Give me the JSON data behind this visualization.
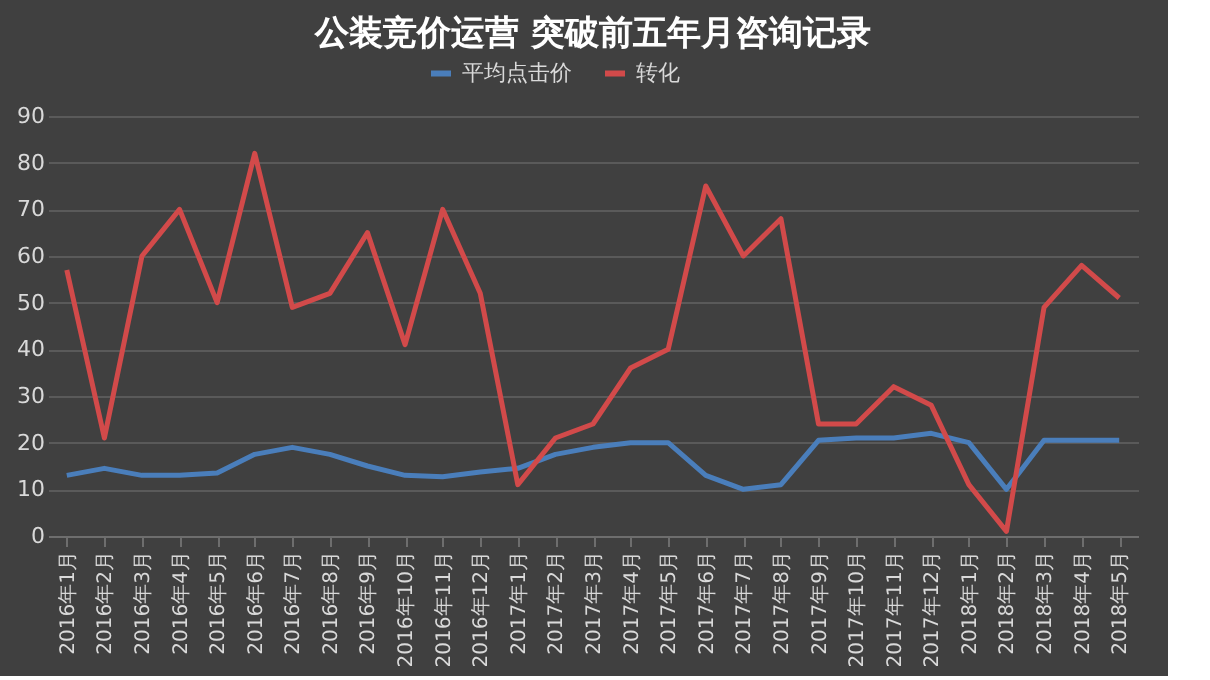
{
  "chart_data": {
    "type": "line",
    "title": "公装竞价运营 突破前五年月咨询记录",
    "categories": [
      "2016年1月",
      "2016年2月",
      "2016年3月",
      "2016年4月",
      "2016年5月",
      "2016年6月",
      "2016年7月",
      "2016年8月",
      "2016年9月",
      "2016年10月",
      "2016年11月",
      "2016年12月",
      "2017年1月",
      "2017年2月",
      "2017年3月",
      "2017年4月",
      "2017年5月",
      "2017年6月",
      "2017年7月",
      "2017年8月",
      "2017年9月",
      "2017年10月",
      "2017年11月",
      "2017年12月",
      "2018年1月",
      "2018年2月",
      "2018年3月",
      "2018年4月",
      "2018年5月"
    ],
    "series": [
      {
        "name": "平均点击价",
        "color": "#4a7ebb",
        "values": [
          13,
          14.5,
          13,
          13,
          13.5,
          17.5,
          19,
          17.5,
          15,
          13,
          12.7,
          13.7,
          14.5,
          17.5,
          19,
          20,
          20,
          13,
          10,
          11,
          20.5,
          21,
          21,
          22,
          20,
          10,
          20.5,
          20.5,
          20.5
        ]
      },
      {
        "name": "转化",
        "color": "#d24a4a",
        "values": [
          57,
          21,
          60,
          70,
          50,
          82,
          49,
          52,
          65,
          41,
          70,
          52,
          11,
          21,
          24,
          36,
          40,
          75,
          60,
          68,
          24,
          24,
          32,
          28,
          11,
          1,
          49,
          58,
          51
        ]
      }
    ],
    "ylim": [
      0,
      90
    ],
    "yticks": [
      0,
      10,
      20,
      30,
      40,
      50,
      60,
      70,
      80,
      90
    ],
    "grid": "y",
    "legend": "top",
    "line_style": "solid",
    "marker": "none"
  }
}
